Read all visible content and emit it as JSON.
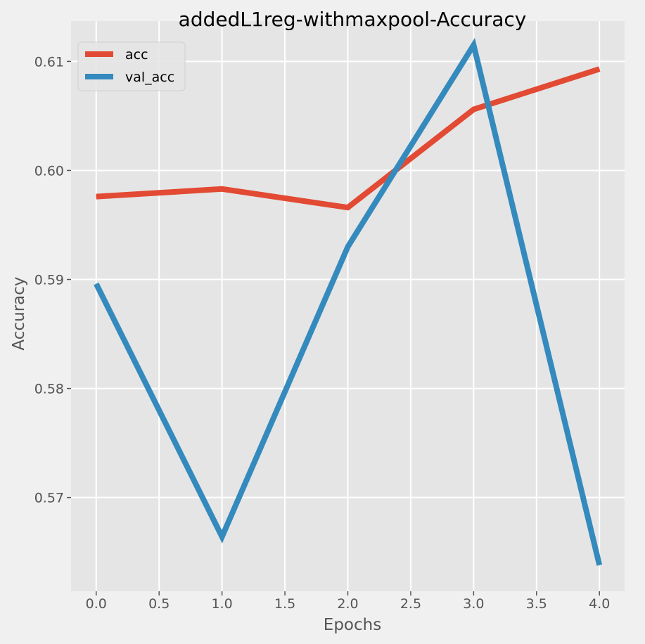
{
  "chart_data": {
    "type": "line",
    "title": "addedL1reg-withmaxpool-Accuracy",
    "xlabel": "Epochs",
    "ylabel": "Accuracy",
    "xlim": [
      -0.2,
      4.2
    ],
    "ylim": [
      0.5614,
      0.6137
    ],
    "x_ticks": [
      0.0,
      0.5,
      1.0,
      1.5,
      2.0,
      2.5,
      3.0,
      3.5,
      4.0
    ],
    "x_tick_labels": [
      "0.0",
      "0.5",
      "1.0",
      "1.5",
      "2.0",
      "2.5",
      "3.0",
      "3.5",
      "4.0"
    ],
    "y_ticks": [
      0.57,
      0.58,
      0.59,
      0.6,
      0.61
    ],
    "y_tick_labels": [
      "0.57",
      "0.58",
      "0.59",
      "0.60",
      "0.61"
    ],
    "x": [
      0,
      1,
      2,
      3,
      4
    ],
    "series": [
      {
        "name": "acc",
        "color": "#E24A33",
        "values": [
          0.5976,
          0.5983,
          0.5966,
          0.6056,
          0.6093
        ]
      },
      {
        "name": "val_acc",
        "color": "#348ABD",
        "values": [
          0.5896,
          0.5664,
          0.593,
          0.6115,
          0.5638
        ]
      }
    ],
    "grid": true,
    "legend_position": "top-left",
    "colors": {
      "background": "#F0F0F0",
      "plot_background": "#E5E5E5",
      "grid": "#FFFFFF"
    }
  }
}
